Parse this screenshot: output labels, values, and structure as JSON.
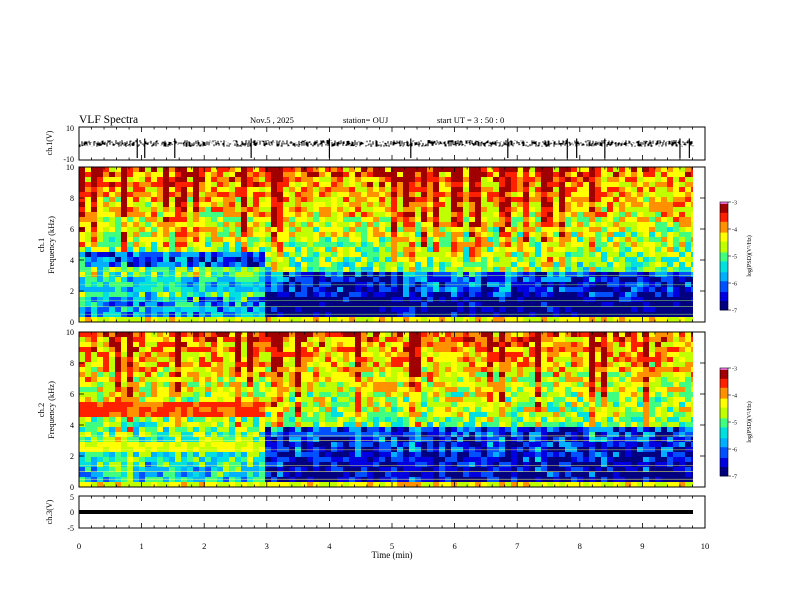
{
  "header": {
    "title": "VLF Spectra",
    "date": "Nov.5  , 2025",
    "station": "station= OUJ",
    "start": "start  UT  =   3  : 50 : 0"
  },
  "colors": {
    "colormap": [
      "#000080",
      "#0000e0",
      "#0050ff",
      "#00b0ff",
      "#00e0e0",
      "#40ff80",
      "#c0ff00",
      "#ffff00",
      "#ff9000",
      "#ff2000",
      "#a00000",
      "#ff80ff"
    ]
  },
  "chart_data": [
    {
      "type": "line",
      "ylabel": "ch.1(V)",
      "ylim": [
        -10,
        10
      ],
      "y_ticks": [
        "10",
        "-10"
      ],
      "baseline": 0,
      "x_range_min": [
        0,
        10
      ],
      "spikes_min": [
        0.93,
        1.05,
        1.53,
        2.75,
        4.0,
        5.3,
        6.85,
        7.8,
        7.95,
        8.4,
        9.6,
        9.75
      ]
    },
    {
      "type": "heatmap",
      "ylabel": "ch.1\nFrequency  (kHz)",
      "ylim": [
        0,
        10
      ],
      "y_ticks": [
        "0",
        "2",
        "4",
        "6",
        "8",
        "10"
      ],
      "colorbar": {
        "label": "log(PSD)(V²/Hz)",
        "range": [
          -7,
          -3
        ],
        "ticks": [
          "-7",
          "-6",
          "-5",
          "-4",
          "-3"
        ]
      },
      "transition_min": 2.9,
      "bands_before_khz": [
        [
          3.5,
          4.5,
          "dark"
        ],
        [
          1.8,
          2.8,
          "mixed"
        ]
      ],
      "bands_after_khz": [
        [
          0.3,
          3.2,
          "dark"
        ]
      ]
    },
    {
      "type": "heatmap",
      "ylabel": "ch.2\nFrequency  (kHz)",
      "ylim": [
        0,
        10
      ],
      "y_ticks": [
        "0",
        "2",
        "4",
        "6",
        "8",
        "10"
      ],
      "colorbar": {
        "label": "log(PSD)(V²/Hz)",
        "range": [
          -7,
          -3
        ],
        "ticks": [
          "-7",
          "-6",
          "-5",
          "-4",
          "-3"
        ]
      },
      "transition_min": 2.9,
      "bands_before_khz": [
        [
          4.6,
          5.4,
          "orange"
        ],
        [
          2.3,
          2.9,
          "yellow"
        ]
      ],
      "bands_after_khz": [
        [
          0.3,
          3.8,
          "dark"
        ]
      ]
    },
    {
      "type": "line",
      "ylabel": "ch.3(V)",
      "ylim": [
        -5,
        5
      ],
      "y_ticks": [
        "5",
        "0",
        "-5"
      ],
      "constant_value": 0,
      "x_range_min": [
        0,
        10
      ]
    }
  ],
  "x_axis": {
    "label": "Time  (min)",
    "range": [
      0,
      10
    ],
    "ticks": [
      "0",
      "1",
      "2",
      "3",
      "4",
      "5",
      "6",
      "7",
      "8",
      "9",
      "10"
    ]
  }
}
